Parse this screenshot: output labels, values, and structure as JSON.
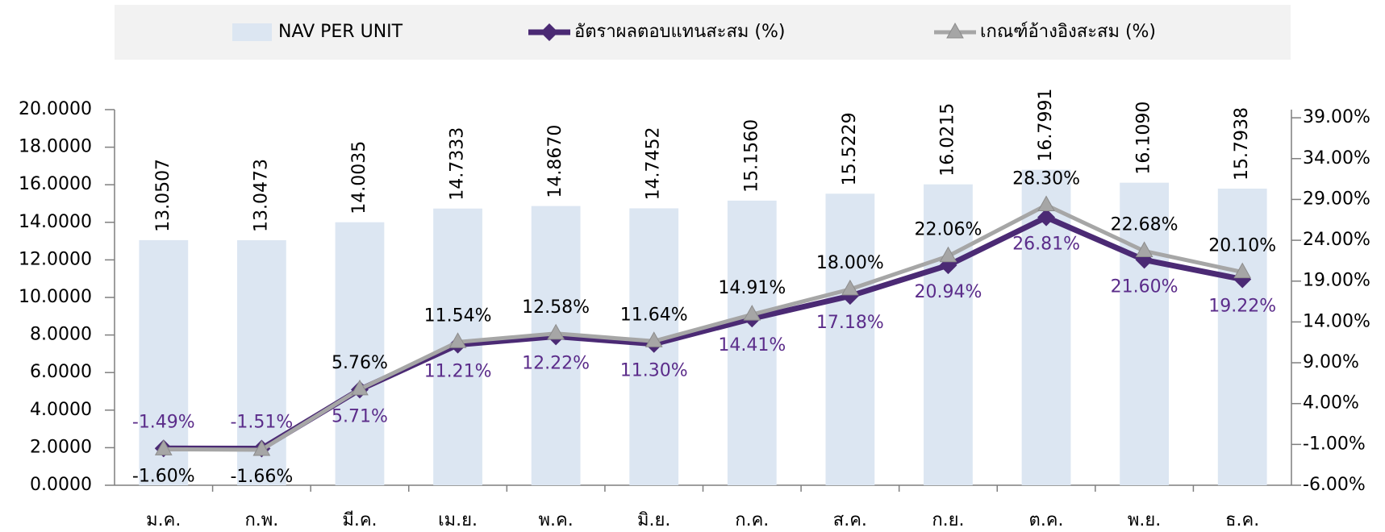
{
  "chart_data": {
    "type": "combo",
    "categories": [
      "ม.ค.",
      "ก.พ.",
      "มี.ค.",
      "เม.ย.",
      "พ.ค.",
      "มิ.ย.",
      "ก.ค.",
      "ส.ค.",
      "ก.ย.",
      "ต.ค.",
      "พ.ย.",
      "ธ.ค."
    ],
    "series": [
      {
        "name": "NAV PER UNIT",
        "type": "bar",
        "color": "#dce6f2",
        "values": [
          13.0507,
          13.0473,
          14.0035,
          14.7333,
          14.867,
          14.7452,
          15.156,
          15.5229,
          16.0215,
          16.7991,
          16.109,
          15.7938
        ],
        "value_labels": [
          "13.0507",
          "13.0473",
          "14.0035",
          "14.7333",
          "14.8670",
          "14.7452",
          "15.1560",
          "15.5229",
          "16.0215",
          "16.7991",
          "16.1090",
          "15.7938"
        ]
      },
      {
        "name": "อัตราผลตอบแทนสะสม (%)",
        "type": "line",
        "axis": "y2",
        "marker": "diamond",
        "color": "#4b2a74",
        "label_color": "#5b2c8a",
        "values": [
          -1.49,
          -1.51,
          5.71,
          11.21,
          12.22,
          11.3,
          14.41,
          17.18,
          20.94,
          26.81,
          21.6,
          19.22
        ],
        "value_labels": [
          "-1.49%",
          "-1.51%",
          "5.71%",
          "11.21%",
          "12.22%",
          "11.30%",
          "14.41%",
          "17.18%",
          "20.94%",
          "26.81%",
          "21.60%",
          "19.22%"
        ]
      },
      {
        "name": "เกณฑ์อ้างอิงสะสม (%)",
        "type": "line",
        "axis": "y2",
        "marker": "triangle",
        "color": "#a6a6a6",
        "label_color": "#000000",
        "values": [
          -1.6,
          -1.66,
          5.76,
          11.54,
          12.58,
          11.64,
          14.91,
          18.0,
          22.06,
          28.3,
          22.68,
          20.1
        ],
        "value_labels": [
          "-1.60%",
          "-1.66%",
          "5.76%",
          "11.54%",
          "12.58%",
          "11.64%",
          "14.91%",
          "18.00%",
          "22.06%",
          "28.30%",
          "22.68%",
          "20.10%"
        ]
      }
    ],
    "ylim": [
      0,
      20
    ],
    "yticks": [
      {
        "value": 0,
        "label": "0.0000"
      },
      {
        "value": 2,
        "label": "2.0000"
      },
      {
        "value": 4,
        "label": "4.0000"
      },
      {
        "value": 6,
        "label": "6.0000"
      },
      {
        "value": 8,
        "label": "8.0000"
      },
      {
        "value": 10,
        "label": "10.0000"
      },
      {
        "value": 12,
        "label": "12.0000"
      },
      {
        "value": 14,
        "label": "14.0000"
      },
      {
        "value": 16,
        "label": "16.0000"
      },
      {
        "value": 18,
        "label": "18.0000"
      },
      {
        "value": 20,
        "label": "20.0000"
      }
    ],
    "y2lim": [
      -6,
      40
    ],
    "y2ticks": [
      {
        "value": -6,
        "label": "-6.00%"
      },
      {
        "value": -1,
        "label": "-1.00%"
      },
      {
        "value": 4,
        "label": "4.00%"
      },
      {
        "value": 9,
        "label": "9.00%"
      },
      {
        "value": 14,
        "label": "14.00%"
      },
      {
        "value": 19,
        "label": "19.00%"
      },
      {
        "value": 24,
        "label": "24.00%"
      },
      {
        "value": 29,
        "label": "29.00%"
      },
      {
        "value": 34,
        "label": "34.00%"
      },
      {
        "value": 39,
        "label": "39.00%"
      }
    ],
    "legend": "top"
  }
}
